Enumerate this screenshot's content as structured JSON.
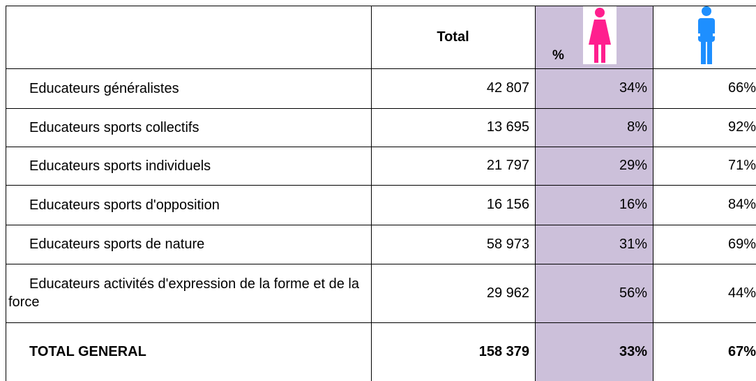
{
  "table": {
    "header": {
      "total": "Total",
      "female": "%"
    },
    "rows": [
      {
        "label": "Educateurs généralistes",
        "total": "42 807",
        "female": "34%",
        "male": "66%"
      },
      {
        "label": "Educateurs sports collectifs",
        "total": "13 695",
        "female": "8%",
        "male": "92%"
      },
      {
        "label": "Educateurs sports individuels",
        "total": "21 797",
        "female": "29%",
        "male": "71%"
      },
      {
        "label": "Educateurs sports d'opposition",
        "total": "16 156",
        "female": "16%",
        "male": "84%"
      },
      {
        "label": "Educateurs sports de nature",
        "total": "58 973",
        "female": "31%",
        "male": "69%"
      },
      {
        "label": "Educateurs activités d'expression de la forme et de la force",
        "total": "29 962",
        "female": "56%",
        "male": "44%"
      }
    ],
    "footer": {
      "label": "TOTAL GENERAL",
      "total": "158 379",
      "female": "33%",
      "male": "67%"
    }
  }
}
